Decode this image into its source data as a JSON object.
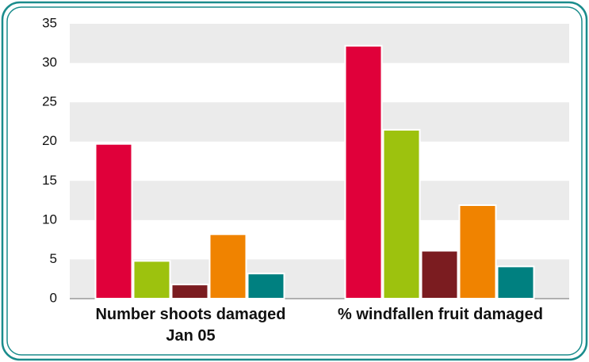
{
  "chart_data": {
    "type": "bar",
    "categories": [
      "Number shoots damaged Jan 05",
      "% windfallen fruit damaged"
    ],
    "series": [
      {
        "color": "#e0003a",
        "values": [
          19.7,
          32.2
        ]
      },
      {
        "color": "#9dc20e",
        "values": [
          4.8,
          21.5
        ]
      },
      {
        "color": "#7b1c20",
        "values": [
          1.8,
          6.1
        ]
      },
      {
        "color": "#f08300",
        "values": [
          8.2,
          11.9
        ]
      },
      {
        "color": "#008080",
        "values": [
          3.2,
          4.1
        ]
      }
    ],
    "ylim": [
      0,
      35
    ],
    "yticks": [
      0,
      5,
      10,
      15,
      20,
      25,
      30,
      35
    ],
    "grid": true
  }
}
